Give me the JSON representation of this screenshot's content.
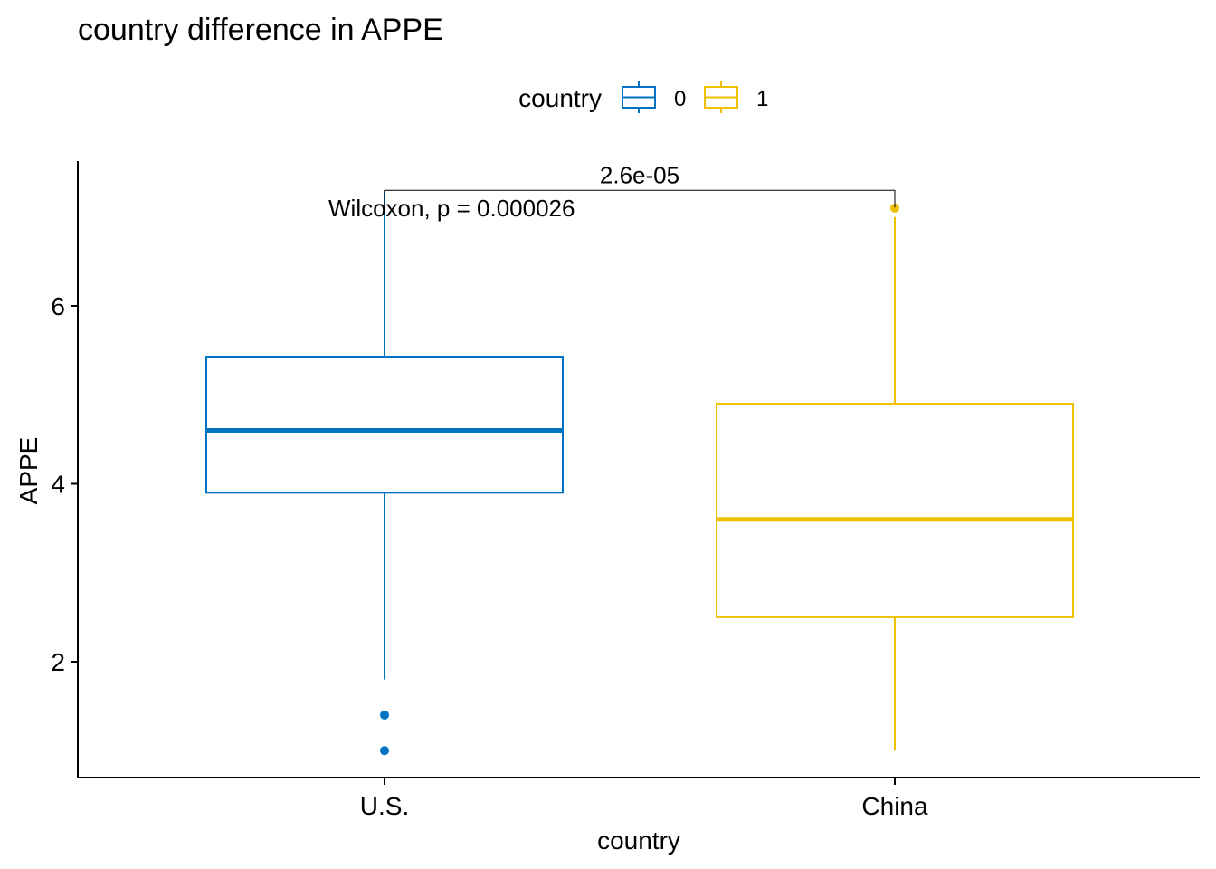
{
  "chart_data": {
    "type": "box",
    "title": "country difference in APPE",
    "xlabel": "country",
    "ylabel": "APPE",
    "legend": {
      "title": "country",
      "position": "top",
      "entries": [
        {
          "label": "0",
          "color": "#0073C2"
        },
        {
          "label": "1",
          "color": "#EFC000"
        }
      ]
    },
    "categories": [
      "U.S.",
      "China"
    ],
    "ylim": [
      0.7,
      7.4
    ],
    "yticks": [
      2,
      4,
      6
    ],
    "series": [
      {
        "category": "U.S.",
        "group": "0",
        "color": "#0073C2",
        "min": 1.8,
        "q1": 3.9,
        "median": 4.6,
        "q3": 5.43,
        "max": 7.3,
        "outliers": [
          1.4,
          1.0
        ]
      },
      {
        "category": "China",
        "group": "1",
        "color": "#EFC000",
        "min": 1.0,
        "q1": 2.5,
        "median": 3.6,
        "q3": 4.9,
        "max": 7.0,
        "outliers": [
          7.1
        ]
      }
    ],
    "annotations": {
      "bracket_label": "2.6e-05",
      "bracket_y": 7.3,
      "test_label": "Wilcoxon, p = 0.000026",
      "test_y": 7.1
    },
    "grid": false
  }
}
